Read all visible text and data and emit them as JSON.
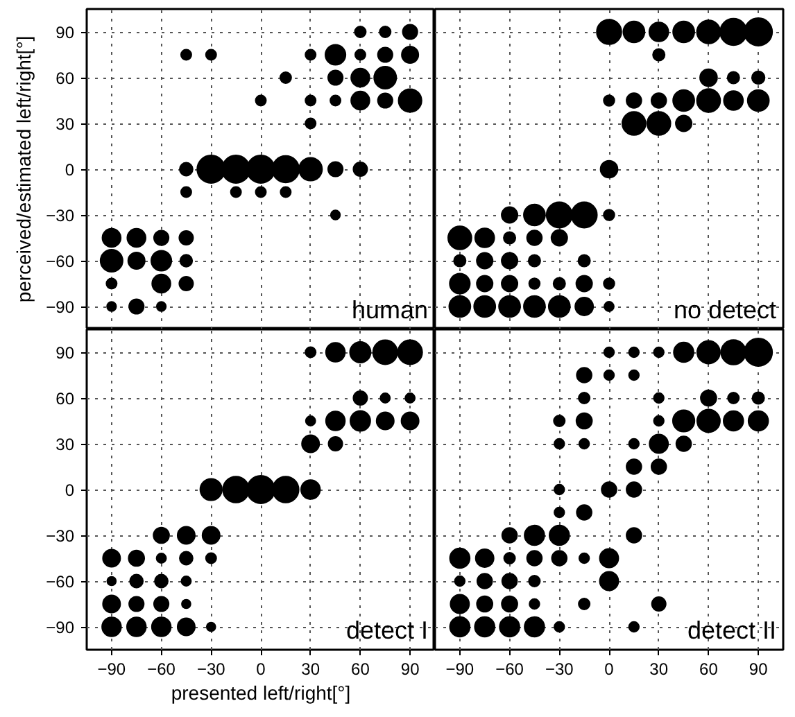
{
  "chart_data": [
    {
      "type": "bubble",
      "annotations": [
        "human"
      ],
      "ylabel": "perceived/estimated left/right[°]",
      "tick_labels": "y",
      "color": "#000000",
      "grid": true,
      "xlim": [
        -105,
        105
      ],
      "ylim": [
        -105,
        105
      ],
      "xticks": [
        -90,
        -60,
        -30,
        0,
        30,
        60,
        90
      ],
      "yticks": [
        {
          "value": -90,
          "label": "−90"
        },
        {
          "value": -60,
          "label": "−60"
        },
        {
          "value": -30,
          "label": "−30"
        },
        0,
        30,
        60,
        90
      ],
      "x": [
        60,
        75,
        90,
        -45,
        -30,
        30,
        45,
        60,
        75,
        90,
        15,
        45,
        60,
        75,
        0,
        30,
        45,
        60,
        75,
        90,
        30,
        -45,
        -30,
        -15,
        0,
        15,
        30,
        45,
        60,
        -45,
        -15,
        0,
        15,
        45,
        -90,
        -75,
        -60,
        -45,
        -90,
        -75,
        -60,
        -45,
        -90,
        -60,
        -45,
        -90,
        -75,
        -60
      ],
      "values": [
        90,
        90,
        90,
        75,
        75,
        75,
        75,
        75,
        75,
        75,
        60,
        60,
        60,
        60,
        45,
        45,
        45,
        45,
        45,
        45,
        30,
        0,
        0,
        0,
        0,
        0,
        0,
        0,
        0,
        -15,
        -15,
        -15,
        -15,
        -30,
        -45,
        -45,
        -45,
        -45,
        -60,
        -60,
        -60,
        -60,
        -75,
        -75,
        -75,
        -90,
        -90,
        -90
      ],
      "sizes": [
        0.16,
        0.16,
        0.28,
        0.14,
        0.14,
        0.14,
        0.53,
        0.14,
        0.28,
        0.36,
        0.16,
        0.28,
        0.44,
        0.64,
        0.14,
        0.14,
        0.14,
        0.44,
        0.28,
        0.69,
        0.14,
        0.22,
        1,
        1,
        1,
        0.93,
        0.69,
        0.28,
        0.25,
        0.14,
        0.14,
        0.14,
        0.14,
        0.11,
        0.44,
        0.44,
        0.28,
        0.25,
        0.64,
        0.36,
        0.53,
        0.19,
        0.14,
        0.44,
        0.25,
        0.11,
        0.28,
        0.11
      ]
    },
    {
      "type": "bubble",
      "annotations": [
        "no detect"
      ],
      "tick_labels": false,
      "color": "#000000",
      "grid": true,
      "xlim": [
        -105,
        105
      ],
      "ylim": [
        -105,
        105
      ],
      "xticks": [
        -90,
        -60,
        -30,
        0,
        30,
        60,
        90
      ],
      "yticks": [
        -90,
        -60,
        -30,
        0,
        30,
        60,
        90
      ],
      "x": [
        0,
        15,
        30,
        45,
        60,
        75,
        90,
        30,
        60,
        75,
        90,
        0,
        15,
        30,
        45,
        60,
        75,
        90,
        15,
        30,
        45,
        0,
        -60,
        -45,
        -30,
        -15,
        0,
        -90,
        -75,
        -60,
        -45,
        -30,
        -90,
        -75,
        -60,
        -45,
        -15,
        -90,
        -75,
        -60,
        -45,
        -30,
        -15,
        0,
        -90,
        -75,
        -60,
        -45,
        -30,
        -15,
        0
      ],
      "values": [
        90,
        90,
        90,
        90,
        90,
        90,
        90,
        75,
        60,
        60,
        60,
        45,
        45,
        45,
        45,
        45,
        45,
        45,
        30,
        30,
        30,
        0,
        -30,
        -30,
        -30,
        -30,
        -30,
        -45,
        -45,
        -45,
        -45,
        -45,
        -60,
        -60,
        -60,
        -60,
        -60,
        -75,
        -75,
        -75,
        -75,
        -75,
        -75,
        -75,
        -90,
        -90,
        -90,
        -90,
        -90,
        -90,
        -90
      ],
      "sizes": [
        0.79,
        0.59,
        0.48,
        0.59,
        0.71,
        0.92,
        1,
        0.18,
        0.38,
        0.18,
        0.21,
        0.15,
        0.29,
        0.29,
        0.59,
        0.71,
        0.48,
        0.59,
        0.71,
        0.71,
        0.33,
        0.38,
        0.33,
        0.59,
        0.85,
        0.85,
        0.15,
        0.71,
        0.48,
        0.18,
        0.29,
        0.33,
        0.18,
        0.33,
        0.33,
        0.18,
        0.18,
        0.53,
        0.33,
        0.33,
        0.15,
        0.18,
        0.33,
        0.15,
        0.59,
        0.59,
        0.59,
        0.59,
        0.59,
        0.42,
        0.12
      ]
    },
    {
      "type": "bubble",
      "annotations": [
        "detect I"
      ],
      "xlabel": "presented left/right[°]",
      "color": "#000000",
      "grid": true,
      "xlim": [
        -105,
        105
      ],
      "ylim": [
        -105,
        105
      ],
      "xticks": [
        {
          "value": -90,
          "label": "−90"
        },
        {
          "value": -60,
          "label": "−60"
        },
        {
          "value": -30,
          "label": "−30"
        },
        0,
        30,
        60,
        90
      ],
      "yticks": [
        {
          "value": -90,
          "label": "−90"
        },
        {
          "value": -60,
          "label": "−60"
        },
        {
          "value": -30,
          "label": "−30"
        },
        0,
        30,
        60,
        90
      ],
      "x": [
        30,
        45,
        60,
        75,
        90,
        60,
        75,
        90,
        30,
        45,
        60,
        75,
        90,
        30,
        45,
        -30,
        -15,
        0,
        15,
        30,
        -60,
        -45,
        -30,
        -90,
        -75,
        -60,
        -45,
        -30,
        -90,
        -75,
        -60,
        -45,
        -90,
        -75,
        -60,
        -45,
        -90,
        -75,
        -60,
        -45,
        -30
      ],
      "values": [
        90,
        90,
        90,
        90,
        90,
        60,
        60,
        60,
        45,
        45,
        45,
        45,
        45,
        30,
        30,
        0,
        0,
        0,
        0,
        0,
        -30,
        -30,
        -30,
        -45,
        -45,
        -45,
        -45,
        -45,
        -60,
        -60,
        -60,
        -60,
        -75,
        -75,
        -75,
        -75,
        -90,
        -90,
        -90,
        -90,
        -90
      ],
      "sizes": [
        0.14,
        0.47,
        0.56,
        0.77,
        0.77,
        0.25,
        0.12,
        0.12,
        0.12,
        0.47,
        0.52,
        0.39,
        0.39,
        0.39,
        0.25,
        0.61,
        0.88,
        1,
        0.88,
        0.47,
        0.32,
        0.39,
        0.39,
        0.39,
        0.32,
        0.12,
        0.22,
        0.14,
        0.1,
        0.22,
        0.22,
        0.12,
        0.39,
        0.28,
        0.28,
        0.1,
        0.47,
        0.47,
        0.47,
        0.39,
        0.1
      ]
    },
    {
      "type": "bubble",
      "annotations": [
        "detect II"
      ],
      "tick_labels": "x",
      "color": "#000000",
      "grid": true,
      "xlim": [
        -105,
        105
      ],
      "ylim": [
        -105,
        105
      ],
      "xticks": [
        {
          "value": -90,
          "label": "−90"
        },
        {
          "value": -60,
          "label": "−60"
        },
        {
          "value": -30,
          "label": "−30"
        },
        0,
        30,
        60,
        90
      ],
      "yticks": [
        -90,
        -60,
        -30,
        0,
        30,
        60,
        90
      ],
      "x": [
        0,
        15,
        30,
        45,
        60,
        75,
        90,
        -15,
        0,
        15,
        -15,
        30,
        60,
        75,
        90,
        -30,
        -15,
        30,
        45,
        60,
        75,
        90,
        -30,
        -15,
        15,
        30,
        45,
        15,
        30,
        -30,
        0,
        15,
        -30,
        -15,
        -60,
        -45,
        -30,
        15,
        -90,
        -75,
        -60,
        -45,
        -30,
        -15,
        0,
        -90,
        -75,
        -60,
        -45,
        0,
        -90,
        -75,
        -60,
        -45,
        -15,
        30,
        -90,
        -75,
        -60,
        -45,
        -30,
        15
      ],
      "values": [
        90,
        90,
        90,
        90,
        90,
        90,
        90,
        75,
        75,
        75,
        60,
        60,
        60,
        60,
        60,
        45,
        45,
        45,
        45,
        45,
        45,
        45,
        30,
        30,
        30,
        30,
        30,
        15,
        15,
        0,
        0,
        0,
        -15,
        -15,
        -30,
        -30,
        -30,
        -30,
        -45,
        -45,
        -45,
        -45,
        -45,
        -45,
        -45,
        -60,
        -60,
        -60,
        -60,
        -60,
        -75,
        -75,
        -75,
        -75,
        -75,
        -75,
        -90,
        -90,
        -90,
        -90,
        -90,
        -90
      ],
      "sizes": [
        0.13,
        0.13,
        0.13,
        0.51,
        0.68,
        0.79,
        1,
        0.29,
        0.13,
        0.13,
        0.16,
        0.13,
        0.32,
        0.16,
        0.18,
        0.16,
        0.32,
        0.13,
        0.61,
        0.68,
        0.51,
        0.51,
        0.13,
        0.13,
        0.13,
        0.45,
        0.29,
        0.29,
        0.29,
        0.13,
        0.29,
        0.29,
        0.13,
        0.29,
        0.29,
        0.51,
        0.51,
        0.29,
        0.51,
        0.42,
        0.16,
        0.29,
        0.29,
        0.13,
        0.45,
        0.13,
        0.29,
        0.29,
        0.16,
        0.45,
        0.45,
        0.32,
        0.32,
        0.13,
        0.16,
        0.25,
        0.51,
        0.51,
        0.51,
        0.51,
        0.13,
        0.13
      ]
    }
  ]
}
